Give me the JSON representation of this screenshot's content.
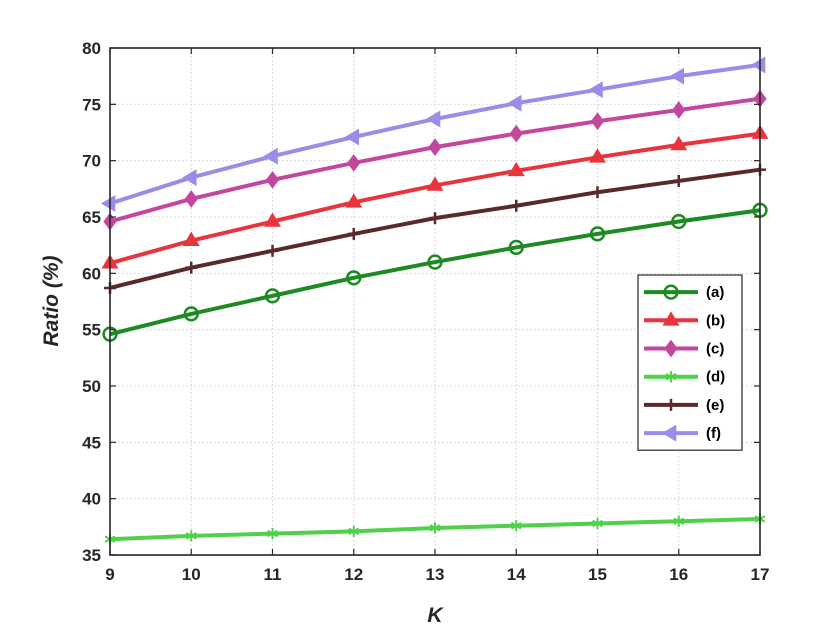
{
  "chart_data": {
    "type": "line",
    "xlabel": "K",
    "ylabel": "Ratio (%)",
    "x": [
      9,
      10,
      11,
      12,
      13,
      14,
      15,
      16,
      17
    ],
    "xlim": [
      9,
      17
    ],
    "ylim": [
      35,
      80
    ],
    "xticks": [
      9,
      10,
      11,
      12,
      13,
      14,
      15,
      16,
      17
    ],
    "yticks": [
      35,
      40,
      45,
      50,
      55,
      60,
      65,
      70,
      75,
      80
    ],
    "grid": true,
    "legend_position": "right-center",
    "series": [
      {
        "name": "(a)",
        "color": "#1e8a22",
        "marker": "circle",
        "values": [
          54.6,
          56.4,
          58.0,
          59.6,
          61.0,
          62.3,
          63.5,
          64.6,
          65.6
        ]
      },
      {
        "name": "(b)",
        "color": "#e8343c",
        "marker": "triangle-up",
        "values": [
          60.9,
          62.9,
          64.6,
          66.3,
          67.8,
          69.1,
          70.3,
          71.4,
          72.4
        ]
      },
      {
        "name": "(c)",
        "color": "#c4479e",
        "marker": "diamond",
        "values": [
          64.6,
          66.6,
          68.3,
          69.8,
          71.2,
          72.4,
          73.5,
          74.5,
          75.5
        ]
      },
      {
        "name": "(d)",
        "color": "#4fd14a",
        "marker": "asterisk",
        "values": [
          36.4,
          36.7,
          36.9,
          37.1,
          37.4,
          37.6,
          37.8,
          38.0,
          38.2
        ]
      },
      {
        "name": "(e)",
        "color": "#5a2a2a",
        "marker": "plus",
        "values": [
          58.7,
          60.5,
          62.0,
          63.5,
          64.9,
          66.0,
          67.2,
          68.2,
          69.2
        ]
      },
      {
        "name": "(f)",
        "color": "#9d8be8",
        "marker": "triangle-left",
        "values": [
          66.2,
          68.5,
          70.4,
          72.1,
          73.7,
          75.1,
          76.3,
          77.5,
          78.5
        ]
      }
    ]
  }
}
